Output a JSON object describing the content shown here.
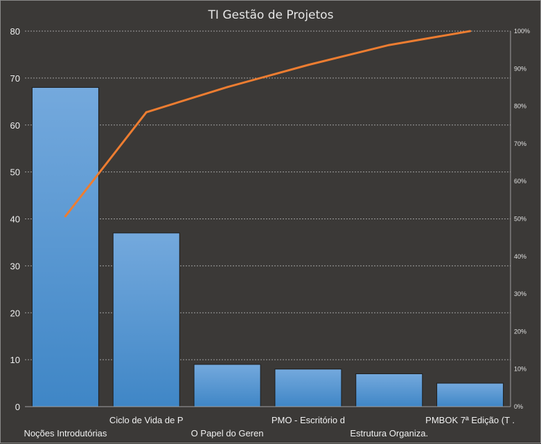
{
  "chart_data": {
    "type": "bar",
    "title": "TI Gestão de Projetos",
    "categories": [
      "Noções Introdutórias",
      "Ciclo de Vida de P",
      "O Papel do Geren",
      "PMO - Escritório d",
      "Estrutura Organiza.",
      "PMBOK 7ª Edição (T ."
    ],
    "series": [
      {
        "type": "bar",
        "axis": "left",
        "values": [
          68,
          37,
          9,
          8,
          7,
          5
        ]
      },
      {
        "type": "line",
        "axis": "right",
        "values": [
          50.7,
          78.4,
          85.1,
          91.0,
          96.3,
          100
        ]
      }
    ],
    "ylim": [
      0,
      80
    ],
    "yticks": [
      "0",
      "10",
      "20",
      "30",
      "40",
      "50",
      "60",
      "70",
      "80"
    ],
    "y2lim": [
      0,
      100
    ],
    "y2ticks": [
      "0%",
      "10%",
      "20%",
      "30%",
      "40%",
      "50%",
      "60%",
      "70%",
      "80%",
      "90%",
      "100%"
    ],
    "grid": true,
    "legend": "none",
    "colors": {
      "bar_top": "#74a9dd",
      "bar_bottom": "#3f86c6",
      "line": "#ed7d31",
      "background": "#3b3937",
      "grid": "#a0a0a0"
    }
  }
}
